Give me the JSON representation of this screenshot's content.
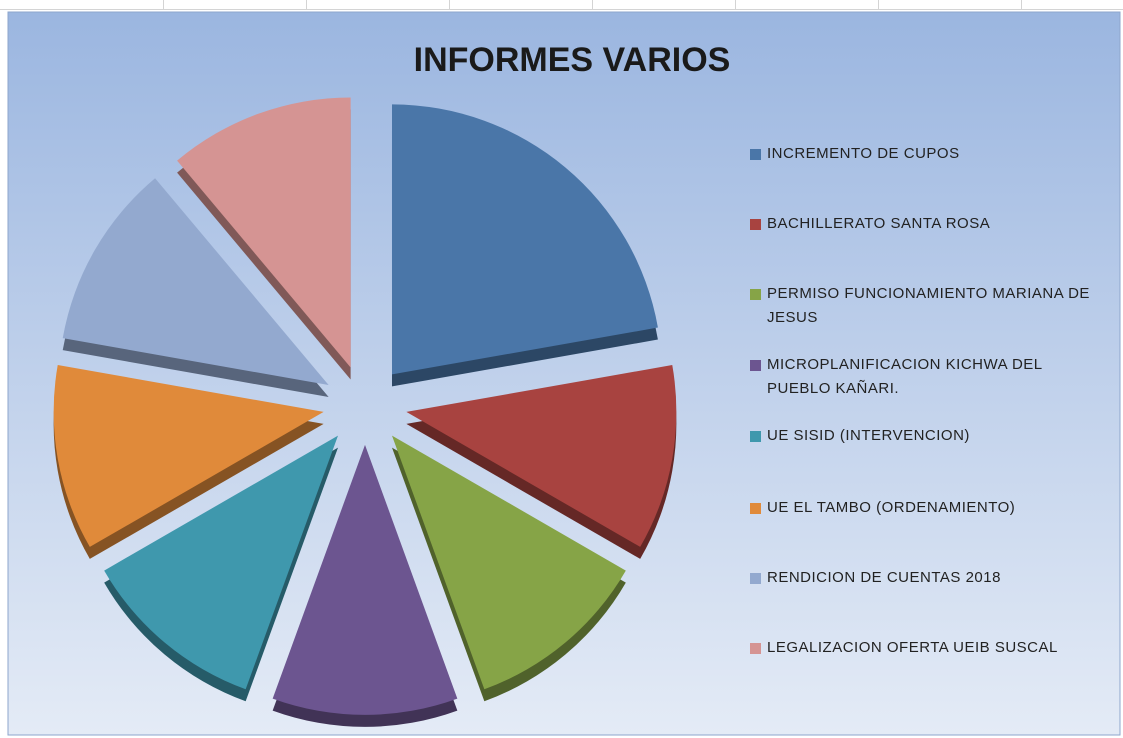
{
  "chart_data": {
    "type": "pie",
    "title": "INFORMES VARIOS",
    "categories": [
      "INCREMENTO DE CUPOS",
      "BACHILLERATO SANTA ROSA",
      "PERMISO FUNCIONAMIENTO MARIANA DE JESUS",
      "MICROPLANIFICACION KICHWA DEL PUEBLO KAÑARI.",
      "UE SISID (INTERVENCION)",
      "UE EL TAMBO (ORDENAMIENTO)",
      "RENDICION DE CUENTAS 2018",
      "LEGALIZACION OFERTA UEIB SUSCAL"
    ],
    "values": [
      2,
      1,
      1,
      1,
      1,
      1,
      1,
      1
    ],
    "colors": [
      "#4a76a8",
      "#a84340",
      "#86a447",
      "#6c5590",
      "#3f98ad",
      "#e08a3a",
      "#93a9cf",
      "#d59493"
    ],
    "legend": "right"
  }
}
